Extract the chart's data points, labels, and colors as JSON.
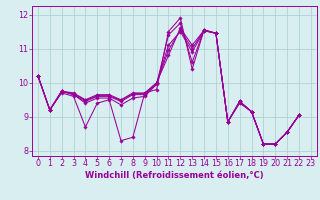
{
  "xlabel": "Windchill (Refroidissement éolien,°C)",
  "x": [
    0,
    1,
    2,
    3,
    4,
    5,
    6,
    7,
    8,
    9,
    10,
    11,
    12,
    13,
    14,
    15,
    16,
    17,
    18,
    19,
    20,
    21,
    22,
    23
  ],
  "lines": [
    [
      10.2,
      9.2,
      9.7,
      9.6,
      8.7,
      9.4,
      9.5,
      8.3,
      8.4,
      9.7,
      9.8,
      11.5,
      11.9,
      10.4,
      11.55,
      11.45,
      8.85,
      9.4,
      9.15,
      8.2,
      8.2,
      8.55,
      9.05,
      null
    ],
    [
      10.2,
      9.2,
      9.75,
      9.65,
      9.4,
      9.55,
      9.55,
      9.35,
      9.55,
      9.6,
      9.95,
      11.4,
      11.75,
      10.6,
      11.55,
      11.45,
      8.85,
      9.45,
      9.15,
      8.2,
      8.2,
      8.55,
      9.05,
      null
    ],
    [
      10.2,
      9.2,
      9.75,
      9.65,
      9.45,
      9.6,
      9.6,
      9.45,
      9.65,
      9.65,
      9.98,
      11.1,
      11.5,
      10.9,
      11.52,
      11.45,
      8.85,
      9.45,
      9.15,
      8.2,
      8.2,
      8.55,
      9.05,
      null
    ],
    [
      10.2,
      9.2,
      9.75,
      9.68,
      9.48,
      9.62,
      9.62,
      9.48,
      9.68,
      9.68,
      9.99,
      10.95,
      11.55,
      11.0,
      11.53,
      11.45,
      8.85,
      9.45,
      9.15,
      8.2,
      8.2,
      8.55,
      9.05,
      null
    ],
    [
      10.2,
      9.2,
      9.75,
      9.7,
      9.5,
      9.65,
      9.65,
      9.5,
      9.7,
      9.7,
      10.0,
      10.8,
      11.6,
      11.1,
      11.54,
      11.45,
      8.85,
      9.44,
      9.15,
      8.2,
      8.2,
      8.55,
      9.05,
      null
    ]
  ],
  "line_color": "#990099",
  "marker": "D",
  "markersize": 1.8,
  "linewidth": 0.75,
  "ylim": [
    7.85,
    12.25
  ],
  "xlim": [
    -0.5,
    23.5
  ],
  "yticks": [
    8,
    9,
    10,
    11,
    12
  ],
  "xticks": [
    0,
    1,
    2,
    3,
    4,
    5,
    6,
    7,
    8,
    9,
    10,
    11,
    12,
    13,
    14,
    15,
    16,
    17,
    18,
    19,
    20,
    21,
    22,
    23
  ],
  "bg_color": "#d8eef0",
  "grid_color": "#aaccce",
  "axis_color": "#990099",
  "tick_color": "#990099",
  "label_color": "#990099",
  "xlabel_fontsize": 6.0,
  "tick_fontsize": 5.8
}
